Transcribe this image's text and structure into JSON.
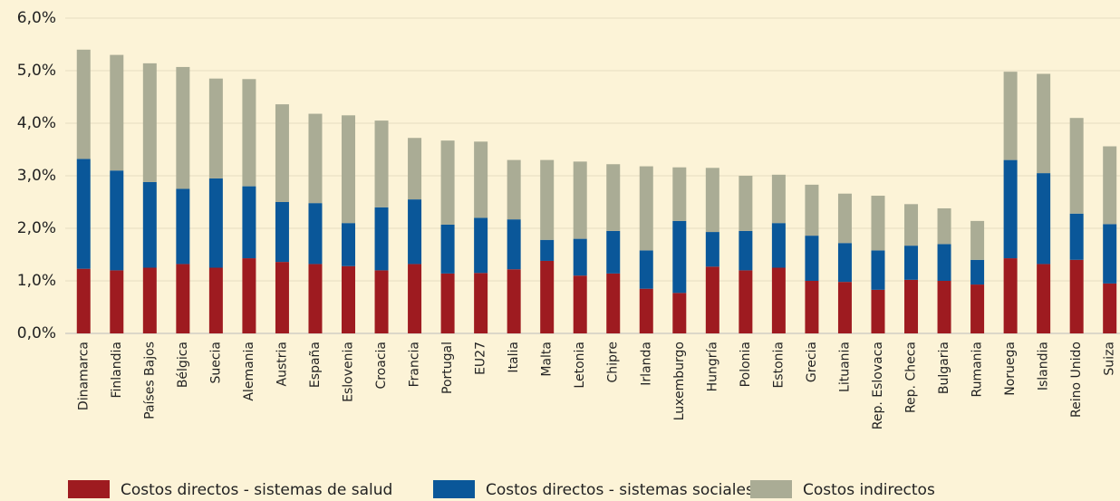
{
  "chart_data": {
    "type": "stacked_bar",
    "categories": [
      "Dinamarca",
      "Finlandia",
      "Países Bajos",
      "Bélgica",
      "Suecia",
      "Alemania",
      "Austria",
      "España",
      "Eslovenia",
      "Croacia",
      "Francia",
      "Portugal",
      "EU27",
      "Italia",
      "Malta",
      "Letonia",
      "Chipre",
      "Irlanda",
      "Luxemburgo",
      "Hungría",
      "Polonia",
      "Estonia",
      "Grecia",
      "Lituania",
      "Rep. Eslovaca",
      "Rep. Checa",
      "Bulgaria",
      "Rumania",
      "Noruega",
      "Islandia",
      "Reino Unido",
      "Suiza"
    ],
    "series": [
      {
        "name": "Costos directos - sistemas de salud",
        "color": "#9e1b20",
        "values": [
          1.23,
          1.2,
          1.25,
          1.32,
          1.25,
          1.43,
          1.36,
          1.32,
          1.28,
          1.2,
          1.32,
          1.14,
          1.15,
          1.22,
          1.38,
          1.1,
          1.14,
          0.85,
          0.77,
          1.27,
          1.2,
          1.25,
          1.0,
          0.98,
          0.83,
          1.02,
          1.0,
          0.93,
          1.43,
          1.32,
          1.4,
          0.95
        ]
      },
      {
        "name": "Costos directos - sistemas sociales",
        "color": "#0a5799",
        "values": [
          2.09,
          1.9,
          1.63,
          1.43,
          1.7,
          1.37,
          1.14,
          1.16,
          0.82,
          1.2,
          1.23,
          0.93,
          1.05,
          0.95,
          0.4,
          0.7,
          0.81,
          0.73,
          1.37,
          0.66,
          0.75,
          0.85,
          0.86,
          0.74,
          0.75,
          0.65,
          0.7,
          0.47,
          1.87,
          1.73,
          0.88,
          1.13
        ]
      },
      {
        "name": "Costos indirectos",
        "color": "#aaac95",
        "values": [
          2.08,
          2.2,
          2.26,
          2.32,
          1.9,
          2.04,
          1.86,
          1.7,
          2.05,
          1.65,
          1.17,
          1.6,
          1.45,
          1.13,
          1.52,
          1.47,
          1.27,
          1.6,
          1.02,
          1.22,
          1.05,
          0.92,
          0.97,
          0.94,
          1.04,
          0.79,
          0.68,
          0.74,
          1.68,
          1.89,
          1.82,
          1.48
        ]
      }
    ],
    "ylim": [
      0,
      6
    ],
    "yticks": [
      {
        "value": 0,
        "label": "0,0%"
      },
      {
        "value": 1,
        "label": "1,0%"
      },
      {
        "value": 2,
        "label": "2,0%"
      },
      {
        "value": 3,
        "label": "3,0%"
      },
      {
        "value": 4,
        "label": "4,0%"
      },
      {
        "value": 5,
        "label": "5,0%"
      },
      {
        "value": 6,
        "label": "6,0%"
      }
    ],
    "grid": true,
    "legend": "bottom"
  }
}
